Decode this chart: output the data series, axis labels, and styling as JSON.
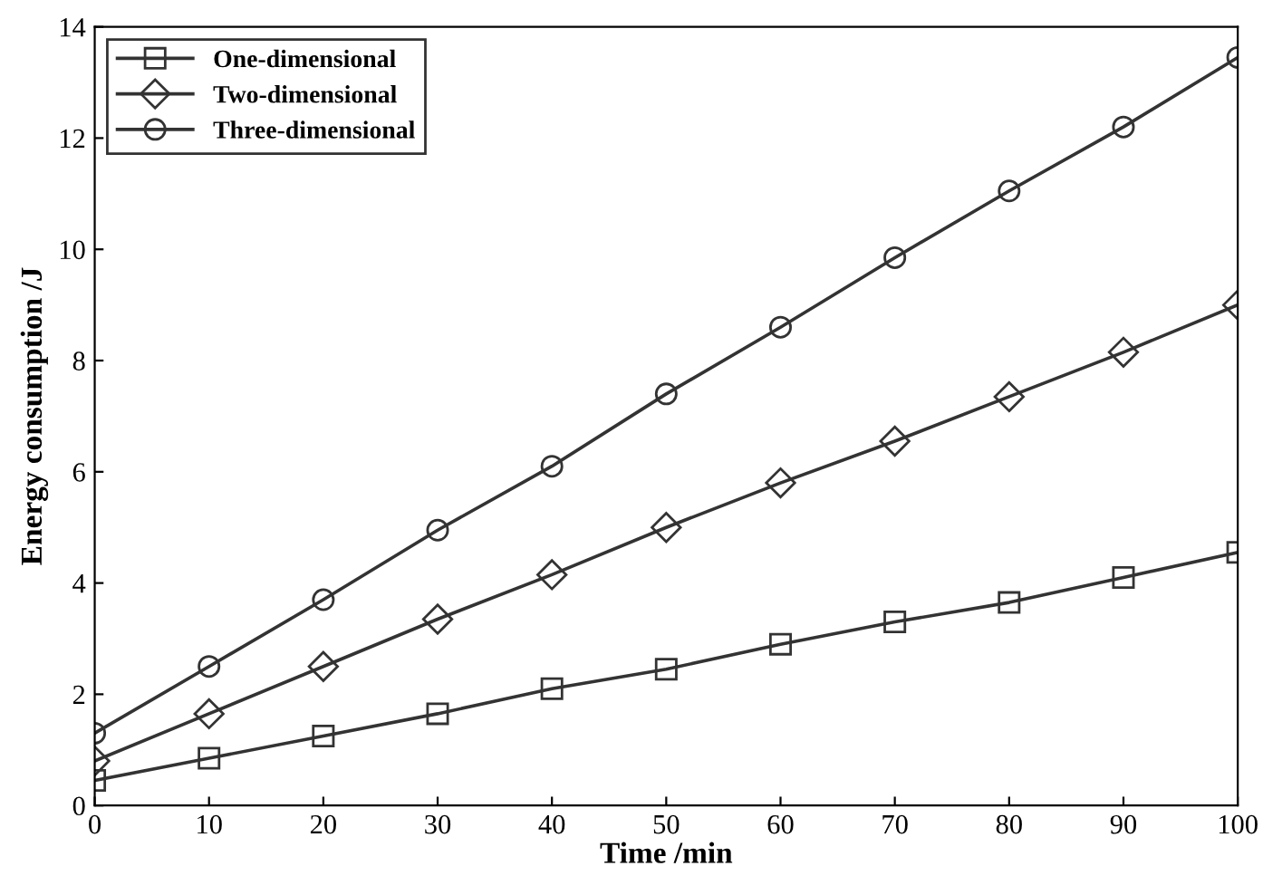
{
  "chart_data": {
    "type": "line",
    "xlabel": "Time /min",
    "ylabel": "Energy consumption /J",
    "x": [
      0,
      10,
      20,
      30,
      40,
      50,
      60,
      70,
      80,
      90,
      100
    ],
    "xlim": [
      0,
      100
    ],
    "xticks": [
      0,
      10,
      20,
      30,
      40,
      50,
      60,
      70,
      80,
      90,
      100
    ],
    "ylim": [
      0,
      14
    ],
    "yticks": [
      0,
      2,
      4,
      6,
      8,
      10,
      12,
      14
    ],
    "grid": false,
    "legend": "top left",
    "line_style": "solid",
    "series": [
      {
        "name": "One-dimensional",
        "color": "#333333",
        "marker": "square",
        "values": [
          0.45,
          0.85,
          1.25,
          1.65,
          2.1,
          2.45,
          2.9,
          3.3,
          3.65,
          4.1,
          4.55
        ]
      },
      {
        "name": "Two-dimensional",
        "color": "#333333",
        "marker": "diamond",
        "values": [
          0.8,
          1.65,
          2.5,
          3.35,
          4.15,
          5.0,
          5.8,
          6.55,
          7.35,
          8.15,
          9.0
        ]
      },
      {
        "name": "Three-dimensional",
        "color": "#333333",
        "marker": "circle",
        "values": [
          1.3,
          2.5,
          3.7,
          4.95,
          6.1,
          7.4,
          8.6,
          9.85,
          11.05,
          12.2,
          13.45
        ]
      }
    ]
  }
}
